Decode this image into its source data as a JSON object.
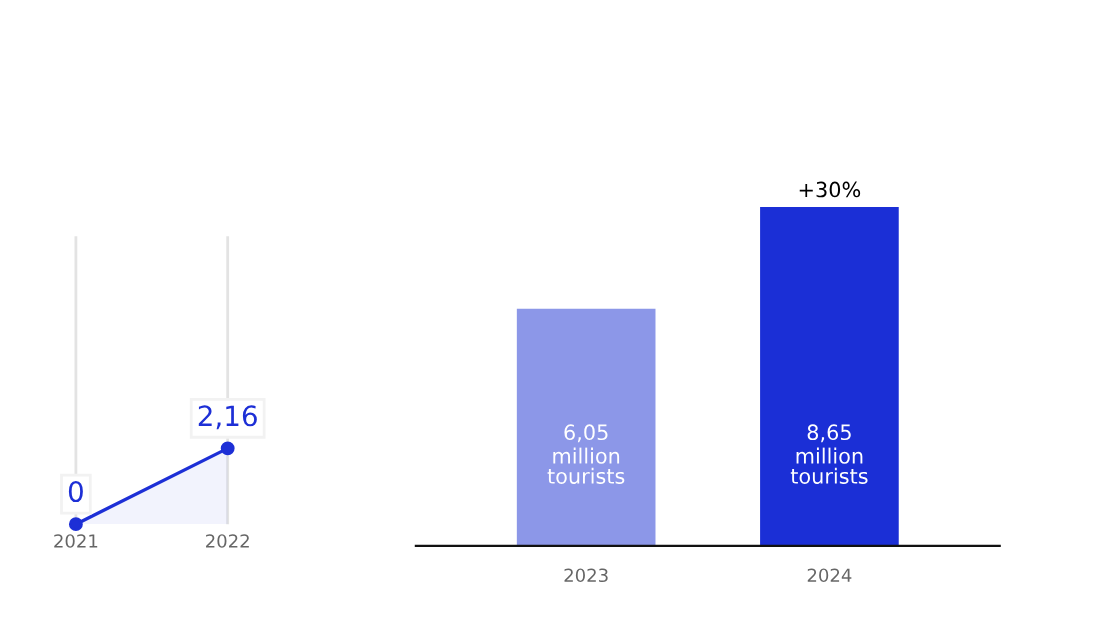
{
  "chart_data": [
    {
      "type": "line",
      "categories": [
        "2021",
        "2022"
      ],
      "values": [
        0,
        2.16
      ],
      "color": "#1d2fd6",
      "value_labels": [
        "0",
        "2,16"
      ],
      "marker": "circle",
      "grid": "x"
    },
    {
      "type": "bar",
      "categories": [
        "2023",
        "2024"
      ],
      "values": [
        6.05,
        8.65
      ],
      "colors": [
        "#8c97e8",
        "#1b2fd6"
      ],
      "value_labels": [
        "6,05",
        "8,65"
      ],
      "annotations": [
        {
          "text": "+30%",
          "x": "2024",
          "y": 8.65
        },
        "million\ntourists",
        "million\ntourists"
      ]
    }
  ]
}
